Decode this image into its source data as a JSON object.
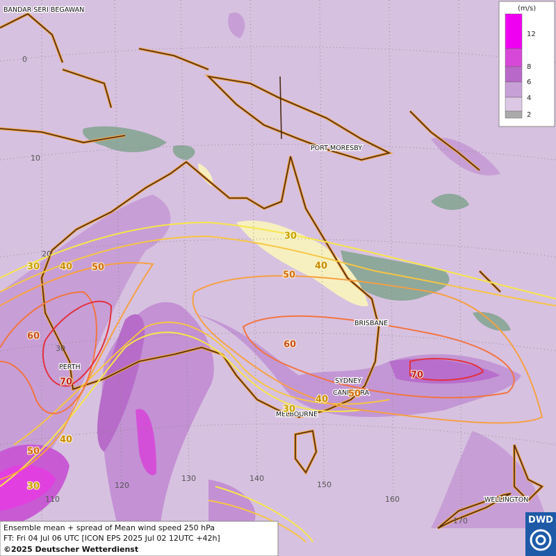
{
  "map": {
    "cities": [
      "BANDAR SERI BEGAWAN",
      "PORT MORESBY",
      "BRISBANE",
      "PERTH",
      "SYDNEY",
      "CANBERRA",
      "MELBOURNE",
      "WELLINGTON"
    ],
    "latitude_labels": [
      0,
      10,
      20,
      30
    ],
    "longitude_labels": [
      110,
      120,
      130,
      140,
      150,
      160,
      170
    ],
    "contour_labels": [
      30,
      40,
      50,
      30,
      40,
      50,
      60,
      70,
      60,
      70,
      30,
      40,
      50,
      40,
      50,
      30
    ]
  },
  "legend": {
    "unit": "(m/s)",
    "levels": [
      12,
      8,
      6,
      4,
      2
    ]
  },
  "footer": {
    "lines": [
      "Ensemble mean + spread of Mean wind speed 250 hPa",
      "FT: Fri 04 Jul 06 UTC [ICON EPS 2025 Jul 02 12UTC +42h]",
      "©2025 Deutscher Wetterdienst"
    ]
  },
  "logo": "DWD"
}
